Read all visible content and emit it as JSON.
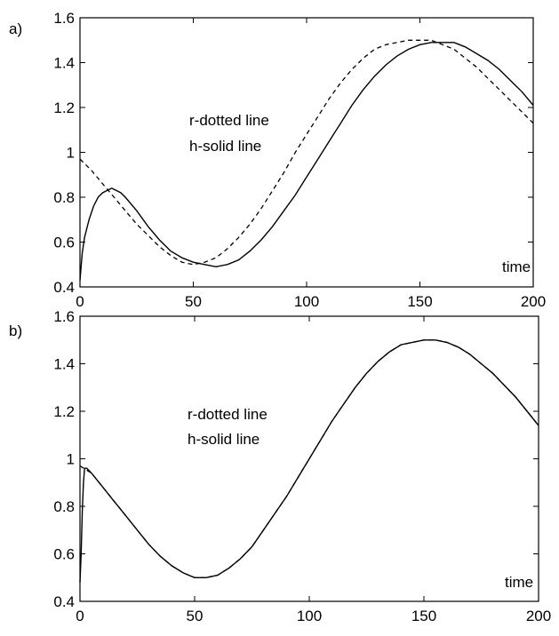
{
  "chart_data": [
    {
      "type": "line",
      "panel_label": "a)",
      "annotation_lines": [
        "r-dotted line",
        "h-solid line"
      ],
      "xlabel_inside": "time",
      "xlim": [
        0,
        200
      ],
      "ylim": [
        0.4,
        1.6
      ],
      "xticks": [
        0,
        50,
        100,
        150,
        200
      ],
      "yticks": [
        0.4,
        0.6,
        0.8,
        1,
        1.2,
        1.4,
        1.6
      ],
      "grid": false,
      "series": [
        {
          "style": "dashed",
          "x": [
            0,
            5,
            10,
            15,
            20,
            25,
            30,
            35,
            40,
            45,
            50,
            55,
            60,
            65,
            70,
            75,
            80,
            85,
            90,
            95,
            100,
            105,
            110,
            115,
            120,
            125,
            130,
            135,
            140,
            145,
            150,
            155,
            160,
            165,
            170,
            175,
            180,
            185,
            190,
            195,
            200
          ],
          "y": [
            0.97,
            0.92,
            0.86,
            0.8,
            0.74,
            0.68,
            0.63,
            0.58,
            0.54,
            0.51,
            0.5,
            0.51,
            0.53,
            0.57,
            0.62,
            0.68,
            0.75,
            0.83,
            0.91,
            1.0,
            1.08,
            1.16,
            1.24,
            1.31,
            1.37,
            1.42,
            1.46,
            1.48,
            1.49,
            1.5,
            1.5,
            1.5,
            1.48,
            1.46,
            1.42,
            1.38,
            1.33,
            1.28,
            1.23,
            1.18,
            1.13
          ]
        },
        {
          "style": "solid",
          "x": [
            0,
            1,
            2,
            4,
            6,
            8,
            10,
            12,
            14,
            16,
            18,
            20,
            25,
            30,
            35,
            40,
            45,
            50,
            55,
            60,
            65,
            70,
            75,
            80,
            85,
            90,
            95,
            100,
            105,
            110,
            115,
            120,
            125,
            130,
            135,
            140,
            145,
            150,
            155,
            160,
            165,
            170,
            175,
            180,
            185,
            190,
            195,
            200
          ],
          "y": [
            0.43,
            0.55,
            0.62,
            0.7,
            0.76,
            0.8,
            0.82,
            0.83,
            0.84,
            0.83,
            0.82,
            0.8,
            0.74,
            0.67,
            0.61,
            0.56,
            0.53,
            0.51,
            0.5,
            0.49,
            0.5,
            0.52,
            0.56,
            0.61,
            0.67,
            0.74,
            0.81,
            0.89,
            0.97,
            1.05,
            1.13,
            1.21,
            1.28,
            1.34,
            1.39,
            1.43,
            1.46,
            1.48,
            1.49,
            1.49,
            1.49,
            1.47,
            1.44,
            1.41,
            1.37,
            1.32,
            1.27,
            1.21
          ]
        }
      ]
    },
    {
      "type": "line",
      "panel_label": "b)",
      "annotation_lines": [
        "r-dotted line",
        "h-solid line"
      ],
      "xlabel_inside": "time",
      "xlim": [
        0,
        200
      ],
      "ylim": [
        0.4,
        1.6
      ],
      "xticks": [
        0,
        50,
        100,
        150,
        200
      ],
      "yticks": [
        0.4,
        0.6,
        0.8,
        1,
        1.2,
        1.4,
        1.6
      ],
      "grid": false,
      "series": [
        {
          "style": "solid",
          "x": [
            0,
            0.5,
            1,
            1.5,
            2,
            3,
            5,
            10,
            15,
            20,
            25,
            30,
            35,
            40,
            45,
            50,
            55,
            60,
            65,
            70,
            75,
            80,
            85,
            90,
            95,
            100,
            105,
            110,
            115,
            120,
            125,
            130,
            135,
            140,
            145,
            150,
            155,
            160,
            165,
            170,
            175,
            180,
            185,
            190,
            195,
            200
          ],
          "y": [
            0.48,
            0.6,
            0.78,
            0.9,
            0.96,
            0.96,
            0.94,
            0.88,
            0.82,
            0.76,
            0.7,
            0.64,
            0.59,
            0.55,
            0.52,
            0.5,
            0.5,
            0.51,
            0.54,
            0.58,
            0.63,
            0.7,
            0.77,
            0.84,
            0.92,
            1.0,
            1.08,
            1.16,
            1.23,
            1.3,
            1.36,
            1.41,
            1.45,
            1.48,
            1.49,
            1.5,
            1.5,
            1.49,
            1.47,
            1.44,
            1.4,
            1.36,
            1.31,
            1.26,
            1.2,
            1.14
          ]
        },
        {
          "style": "dashed",
          "x": [
            0,
            5,
            10,
            15,
            20,
            25,
            30,
            35,
            40,
            45,
            50,
            55,
            60,
            65,
            70,
            75,
            80,
            85,
            90,
            95,
            100,
            105,
            110,
            115,
            120,
            125,
            130,
            135,
            140,
            145,
            150,
            155,
            160,
            165,
            170,
            175,
            180,
            185,
            190,
            195,
            200
          ],
          "y": [
            0.97,
            0.94,
            0.88,
            0.82,
            0.76,
            0.7,
            0.64,
            0.59,
            0.55,
            0.52,
            0.5,
            0.5,
            0.51,
            0.54,
            0.58,
            0.63,
            0.7,
            0.77,
            0.84,
            0.92,
            1.0,
            1.08,
            1.16,
            1.23,
            1.3,
            1.36,
            1.41,
            1.45,
            1.48,
            1.49,
            1.5,
            1.5,
            1.49,
            1.47,
            1.44,
            1.4,
            1.36,
            1.31,
            1.26,
            1.2,
            1.14
          ]
        }
      ]
    }
  ]
}
